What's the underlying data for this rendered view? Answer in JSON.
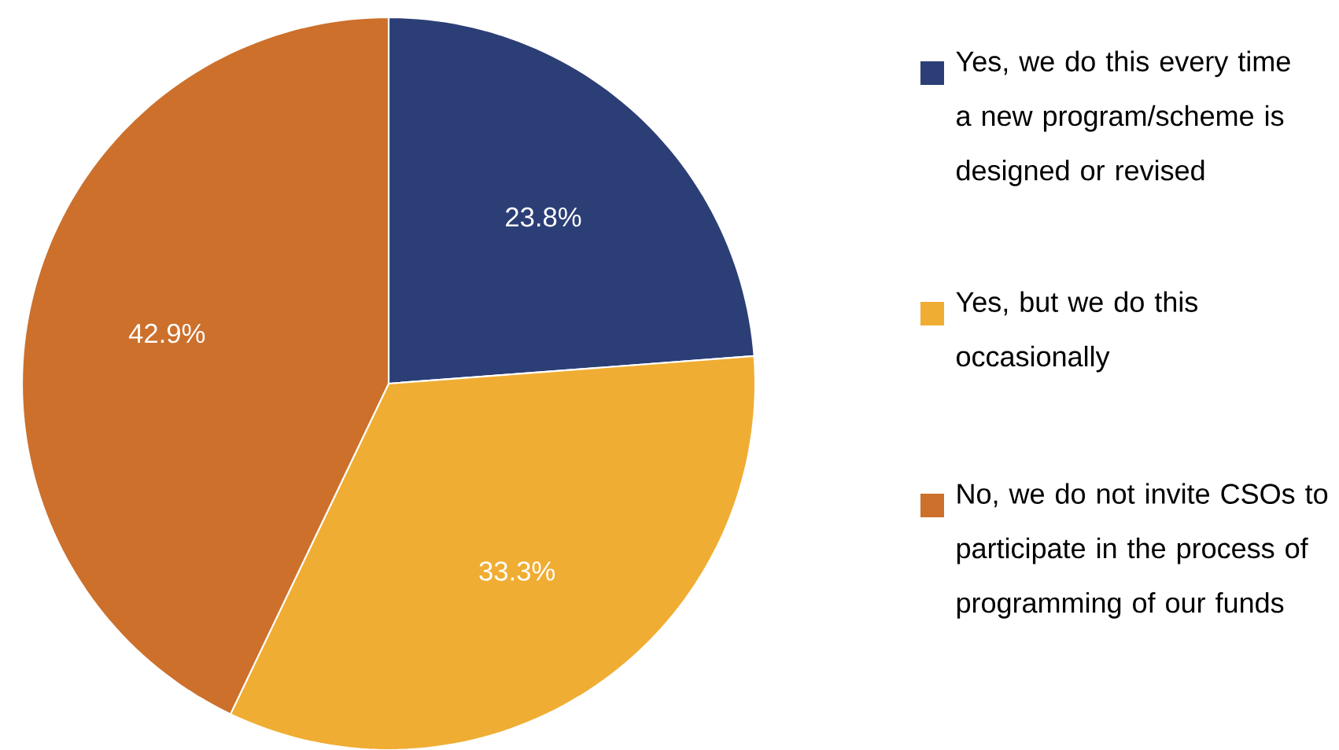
{
  "chart_data": {
    "type": "pie",
    "categories": [
      "Yes, we do this every time a new program/scheme is designed or revised",
      "Yes, but we do this occasionally",
      "No, we do not invite CSOs to participate in the process of programming of our funds"
    ],
    "values": [
      23.8,
      33.3,
      42.9
    ],
    "value_labels": [
      "23.8%",
      "33.3%",
      "42.9%"
    ],
    "colors": [
      "#2b3e76",
      "#f0ad33",
      "#cc702c"
    ],
    "legend": "right"
  }
}
